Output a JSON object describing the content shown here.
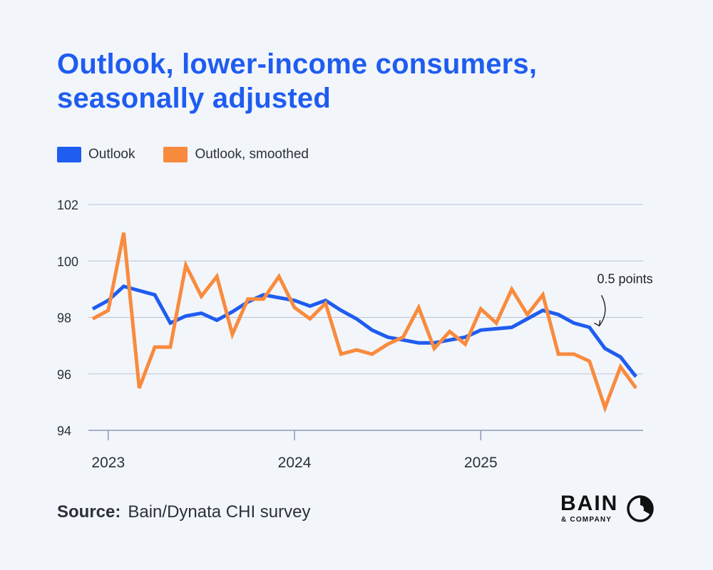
{
  "title_line1": "Outlook, lower-income consumers,",
  "title_line2": "seasonally adjusted",
  "legend": [
    {
      "label": "Outlook",
      "color": "#1f5cf0"
    },
    {
      "label": "Outlook, smoothed",
      "color": "#f98b3e"
    }
  ],
  "source_label": "Source:",
  "source_text": "Bain/Dynata CHI survey",
  "logo": {
    "word": "BAIN",
    "sub": "& COMPANY"
  },
  "chart_data": {
    "type": "line",
    "title": "Outlook, lower-income consumers, seasonally adjusted",
    "xlabel": "",
    "ylabel": "",
    "ylim": [
      94,
      102
    ],
    "y_ticks": [
      94,
      96,
      98,
      100,
      102
    ],
    "x_ticks": [
      {
        "label": "2023",
        "x": 1
      },
      {
        "label": "2024",
        "x": 13
      },
      {
        "label": "2025",
        "x": 25
      }
    ],
    "xlim": [
      0,
      35
    ],
    "grid": true,
    "annotation": {
      "text": "0.5 points",
      "x": 32.5,
      "y": 97.65
    },
    "series": [
      {
        "name": "Outlook",
        "color": "#1f5cf0",
        "x": [
          0,
          1,
          2,
          3,
          4,
          5,
          6,
          7,
          8,
          9,
          10,
          11,
          12,
          13,
          14,
          15,
          16,
          17,
          18,
          19,
          20,
          21,
          22,
          23,
          24,
          25,
          26,
          27,
          28,
          29,
          30,
          31,
          32,
          33,
          34,
          35
        ],
        "values": [
          98.3,
          98.6,
          99.1,
          98.95,
          98.8,
          97.8,
          98.05,
          98.15,
          97.9,
          98.2,
          98.55,
          98.8,
          98.7,
          98.6,
          98.4,
          98.6,
          98.25,
          97.95,
          97.55,
          97.3,
          97.2,
          97.1,
          97.1,
          97.2,
          97.3,
          97.55,
          97.6,
          97.65,
          97.95,
          98.25,
          98.1,
          97.8,
          97.65,
          96.9,
          96.6,
          95.9
        ]
      },
      {
        "name": "Outlook, smoothed",
        "color": "#f98b3e",
        "x": [
          0,
          1,
          2,
          3,
          4,
          5,
          6,
          7,
          8,
          9,
          10,
          11,
          12,
          13,
          14,
          15,
          16,
          17,
          18,
          19,
          20,
          21,
          22,
          23,
          24,
          25,
          26,
          27,
          28,
          29,
          30,
          31,
          32,
          33,
          34,
          35
        ],
        "values": [
          97.95,
          98.25,
          101.0,
          95.5,
          96.95,
          96.95,
          99.85,
          98.75,
          99.45,
          97.4,
          98.65,
          98.65,
          99.45,
          98.35,
          97.95,
          98.5,
          96.7,
          96.85,
          96.7,
          97.05,
          97.3,
          98.35,
          96.9,
          97.5,
          97.05,
          98.3,
          97.8,
          99.0,
          98.1,
          98.8,
          96.7,
          96.7,
          96.45,
          94.8,
          96.25,
          95.5
        ]
      }
    ]
  }
}
